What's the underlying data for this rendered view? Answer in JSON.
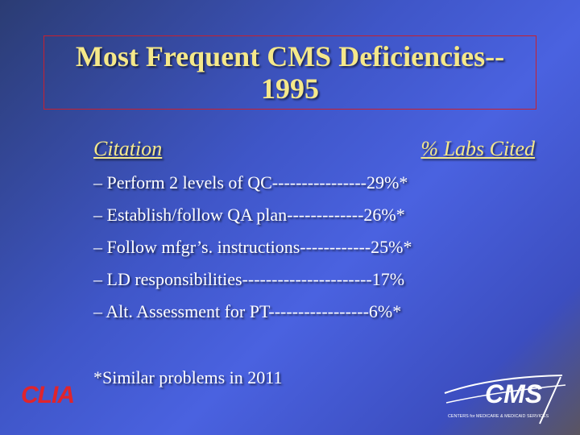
{
  "title": {
    "line1": "Most Frequent CMS Deficiencies--",
    "line2": "1995"
  },
  "header": {
    "left": "Citation",
    "right": "% Labs Cited"
  },
  "items": [
    "– Perform 2 levels of QC----------------29%*",
    "– Establish/follow QA plan-------------26%*",
    "– Follow mfgr’s. instructions------------25%*",
    "– LD responsibilities----------------------17%",
    "– Alt. Assessment for PT-----------------6%*"
  ],
  "footnote": "*Similar problems in 2011",
  "logos": {
    "clia": "CLIA",
    "cms": "CMS",
    "cms_subtitle": "CENTERS for MEDICARE & MEDICAID SERVICES"
  },
  "colors": {
    "title": "#f5e88a",
    "text": "#ffffff",
    "clia": "#e0242c",
    "border": "#c8202e"
  }
}
